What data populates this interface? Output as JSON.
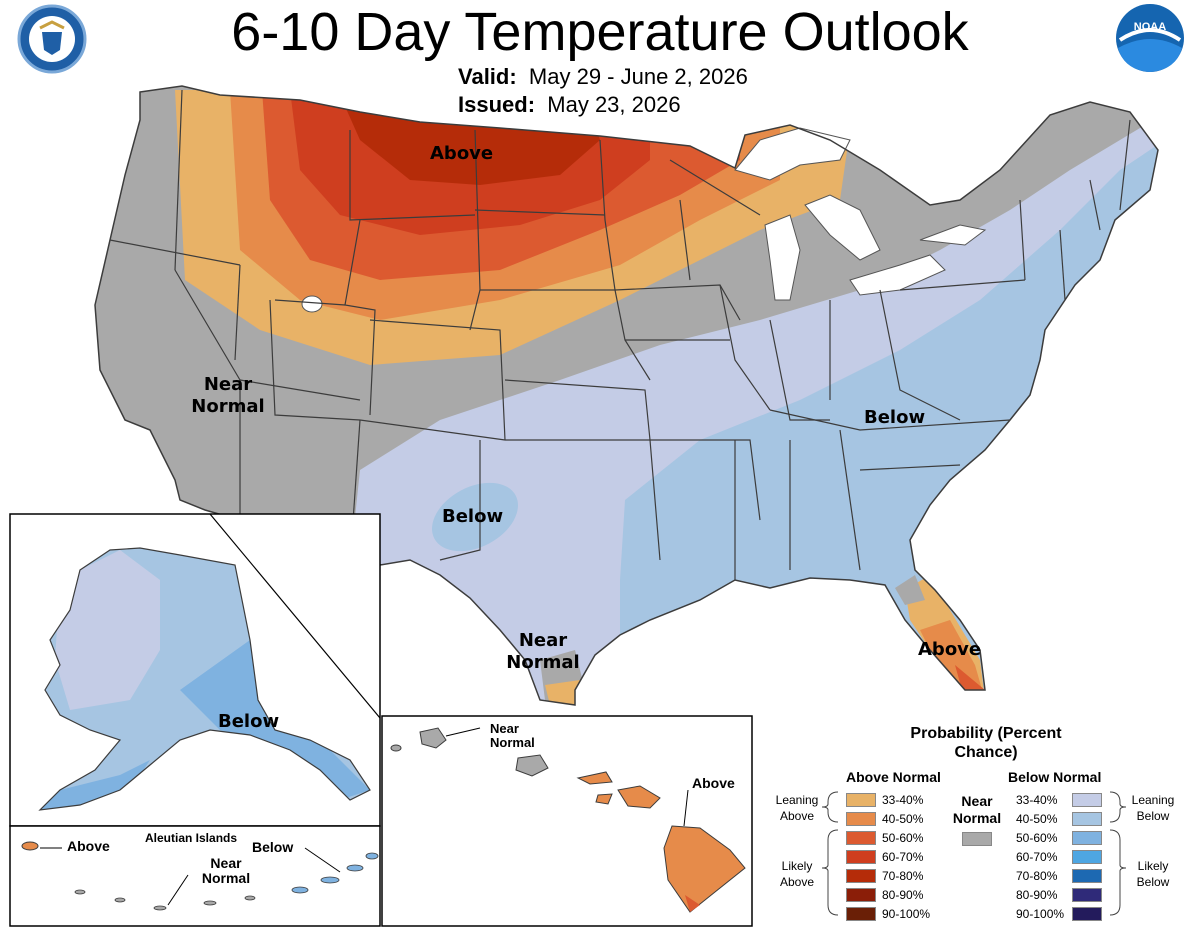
{
  "header": {
    "title": "6-10 Day Temperature Outlook",
    "valid_label": "Valid:",
    "valid_value": "May 29 - June 2, 2026",
    "issued_label": "Issued:",
    "issued_value": "May 23, 2026"
  },
  "logos": {
    "left": "department-of-commerce-seal",
    "right": "noaa-logo",
    "noaa_text": "NOAA"
  },
  "map_labels": {
    "above_north": "Above",
    "near_normal_west": "Near Normal",
    "below_east": "Below",
    "below_southwest": "Below",
    "near_normal_texas": "Near Normal",
    "above_florida": "Above",
    "alaska_below": "Below",
    "aleutian_title": "Aleutian Islands",
    "aleutian_above": "Above",
    "aleutian_near_normal": "Near Normal",
    "aleutian_below": "Below",
    "hawaii_near_normal": "Near Normal",
    "hawaii_above": "Above"
  },
  "legend": {
    "title": "Probability (Percent Chance)",
    "above_heading": "Above Normal",
    "below_heading": "Below Normal",
    "near_heading": "Near Normal",
    "near_color": "#a9a9a9",
    "leaning_above": "Leaning Above",
    "likely_above": "Likely Above",
    "leaning_below": "Leaning Below",
    "likely_below": "Likely Below",
    "above": [
      {
        "range": "33-40%",
        "color": "#e8b267"
      },
      {
        "range": "40-50%",
        "color": "#e68b4a"
      },
      {
        "range": "50-60%",
        "color": "#dc5a30"
      },
      {
        "range": "60-70%",
        "color": "#cf3e1f"
      },
      {
        "range": "70-80%",
        "color": "#b52c09"
      },
      {
        "range": "80-90%",
        "color": "#8b1e08"
      },
      {
        "range": "90-100%",
        "color": "#6a1f06"
      }
    ],
    "below": [
      {
        "range": "33-40%",
        "color": "#c4cce6"
      },
      {
        "range": "40-50%",
        "color": "#a6c5e2"
      },
      {
        "range": "50-60%",
        "color": "#7fb2e0"
      },
      {
        "range": "60-70%",
        "color": "#4ea6e2"
      },
      {
        "range": "70-80%",
        "color": "#1d69b2"
      },
      {
        "range": "80-90%",
        "color": "#2f2a79"
      },
      {
        "range": "90-100%",
        "color": "#231b5c"
      }
    ]
  }
}
